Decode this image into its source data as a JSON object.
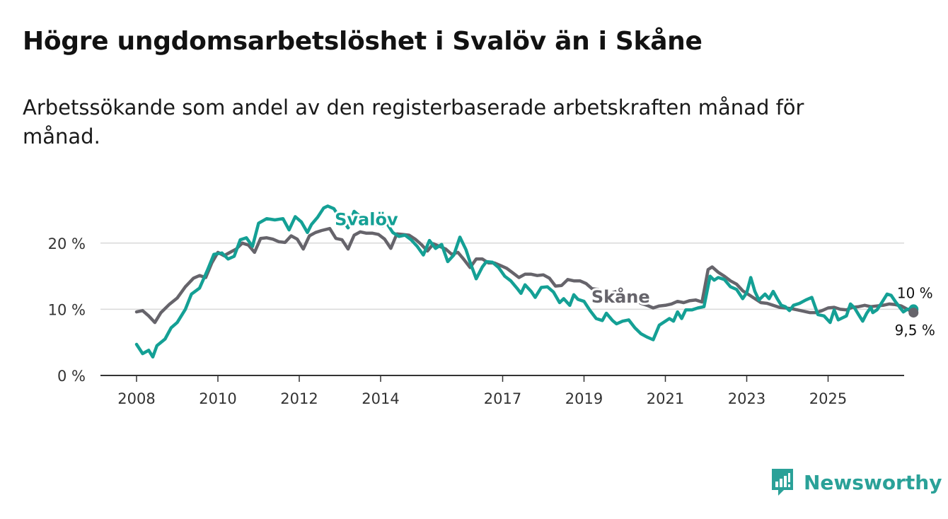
{
  "header": {
    "title": "Högre ungdomsarbetslöshet i Svalöv än i Skåne",
    "subtitle": "Arbetssökande som andel av den registerbaserade arbetskraften månad för månad."
  },
  "brand": {
    "name": "Newsworthy",
    "color": "#2aa198"
  },
  "chart_data": {
    "type": "line",
    "title": "Högre ungdomsarbetslöshet i Svalöv än i Skåne",
    "xlabel": "",
    "ylabel": "",
    "xlim": [
      2008.0,
      2026.0
    ],
    "ylim": [
      0,
      25
    ],
    "yticks": [
      0,
      10,
      20
    ],
    "ytick_labels": [
      "0 %",
      "10 %",
      "20 %"
    ],
    "xticks": [
      2008,
      2010,
      2012,
      2014,
      2017,
      2019,
      2021,
      2023,
      2025
    ],
    "xtick_labels": [
      "2008",
      "2010",
      "2012",
      "2014",
      "2017",
      "2019",
      "2021",
      "2023",
      "2025"
    ],
    "gridlines": true,
    "series": [
      {
        "name": "Svalöv",
        "color": "#14a095",
        "end_label": "10 %",
        "points": [
          [
            2008.0,
            4.7
          ],
          [
            2008.15,
            3.3
          ],
          [
            2008.3,
            3.8
          ],
          [
            2008.4,
            2.8
          ],
          [
            2008.5,
            4.5
          ],
          [
            2008.7,
            5.5
          ],
          [
            2008.85,
            7.2
          ],
          [
            2009.0,
            8.0
          ],
          [
            2009.2,
            10.0
          ],
          [
            2009.35,
            12.3
          ],
          [
            2009.55,
            13.2
          ],
          [
            2009.75,
            16.0
          ],
          [
            2009.9,
            18.3
          ],
          [
            2010.1,
            18.5
          ],
          [
            2010.25,
            17.6
          ],
          [
            2010.4,
            18.0
          ],
          [
            2010.55,
            20.5
          ],
          [
            2010.7,
            20.8
          ],
          [
            2010.85,
            19.5
          ],
          [
            2011.0,
            23.0
          ],
          [
            2011.2,
            23.7
          ],
          [
            2011.4,
            23.5
          ],
          [
            2011.6,
            23.7
          ],
          [
            2011.75,
            22.0
          ],
          [
            2011.9,
            24.0
          ],
          [
            2012.05,
            23.2
          ],
          [
            2012.2,
            21.6
          ],
          [
            2012.3,
            22.8
          ],
          [
            2012.45,
            23.9
          ],
          [
            2012.6,
            25.3
          ],
          [
            2012.7,
            25.6
          ],
          [
            2012.85,
            25.2
          ],
          [
            2013.0,
            23.8
          ],
          [
            2013.1,
            23.2
          ],
          [
            2013.2,
            22.3
          ],
          [
            2013.35,
            24.8
          ],
          [
            2013.5,
            24.0
          ],
          [
            2013.65,
            23.1
          ],
          [
            2013.8,
            23.5
          ],
          [
            2013.9,
            22.8
          ],
          [
            2014.05,
            22.6
          ],
          [
            2014.15,
            23.0
          ],
          [
            2014.3,
            21.6
          ],
          [
            2014.45,
            21.0
          ],
          [
            2014.6,
            21.2
          ],
          [
            2014.75,
            20.5
          ],
          [
            2014.9,
            19.5
          ],
          [
            2015.05,
            18.2
          ],
          [
            2015.2,
            20.4
          ],
          [
            2015.35,
            19.2
          ],
          [
            2015.5,
            19.8
          ],
          [
            2015.65,
            17.2
          ],
          [
            2015.8,
            18.2
          ],
          [
            2015.95,
            20.9
          ],
          [
            2016.1,
            19.0
          ],
          [
            2016.2,
            17.1
          ],
          [
            2016.35,
            14.6
          ],
          [
            2016.5,
            16.4
          ],
          [
            2016.6,
            17.2
          ],
          [
            2016.75,
            17.1
          ],
          [
            2016.9,
            16.3
          ],
          [
            2017.05,
            15.0
          ],
          [
            2017.2,
            14.3
          ],
          [
            2017.35,
            13.2
          ],
          [
            2017.45,
            12.4
          ],
          [
            2017.55,
            13.7
          ],
          [
            2017.7,
            12.7
          ],
          [
            2017.8,
            11.8
          ],
          [
            2017.95,
            13.3
          ],
          [
            2018.1,
            13.4
          ],
          [
            2018.25,
            12.6
          ],
          [
            2018.4,
            11.0
          ],
          [
            2018.5,
            11.6
          ],
          [
            2018.65,
            10.6
          ],
          [
            2018.75,
            12.2
          ],
          [
            2018.85,
            11.5
          ],
          [
            2019.0,
            11.2
          ],
          [
            2019.15,
            9.8
          ],
          [
            2019.3,
            8.6
          ],
          [
            2019.45,
            8.3
          ],
          [
            2019.55,
            9.4
          ],
          [
            2019.7,
            8.3
          ],
          [
            2019.8,
            7.8
          ],
          [
            2019.95,
            8.2
          ],
          [
            2020.1,
            8.4
          ],
          [
            2020.25,
            7.2
          ],
          [
            2020.4,
            6.3
          ],
          [
            2020.55,
            5.8
          ],
          [
            2020.7,
            5.4
          ],
          [
            2020.85,
            7.6
          ],
          [
            2021.0,
            8.2
          ],
          [
            2021.1,
            8.6
          ],
          [
            2021.2,
            8.2
          ],
          [
            2021.3,
            9.6
          ],
          [
            2021.4,
            8.6
          ],
          [
            2021.5,
            9.9
          ],
          [
            2021.65,
            9.9
          ],
          [
            2021.8,
            10.2
          ],
          [
            2021.95,
            10.4
          ],
          [
            2022.1,
            15.0
          ],
          [
            2022.2,
            14.4
          ],
          [
            2022.3,
            14.8
          ],
          [
            2022.45,
            14.5
          ],
          [
            2022.6,
            13.4
          ],
          [
            2022.75,
            13.0
          ],
          [
            2022.9,
            11.6
          ],
          [
            2023.0,
            12.5
          ],
          [
            2023.1,
            14.8
          ],
          [
            2023.2,
            12.7
          ],
          [
            2023.3,
            11.4
          ],
          [
            2023.45,
            12.3
          ],
          [
            2023.55,
            11.6
          ],
          [
            2023.65,
            12.7
          ],
          [
            2023.75,
            11.6
          ],
          [
            2023.85,
            10.6
          ],
          [
            2023.95,
            10.4
          ],
          [
            2024.05,
            9.8
          ],
          [
            2024.15,
            10.6
          ],
          [
            2024.3,
            10.9
          ],
          [
            2024.45,
            11.4
          ],
          [
            2024.6,
            11.8
          ],
          [
            2024.75,
            9.2
          ],
          [
            2024.9,
            9.0
          ],
          [
            2025.05,
            8.0
          ],
          [
            2025.15,
            9.9
          ],
          [
            2025.25,
            8.4
          ],
          [
            2025.35,
            8.7
          ],
          [
            2025.45,
            9.0
          ],
          [
            2025.55,
            10.8
          ],
          [
            2025.65,
            10.2
          ],
          [
            2025.75,
            9.2
          ],
          [
            2025.85,
            8.2
          ],
          [
            2025.95,
            9.4
          ],
          [
            2026.05,
            10.3
          ],
          [
            2026.1,
            9.5
          ],
          [
            2026.2,
            9.9
          ],
          [
            2026.3,
            10.8
          ],
          [
            2026.45,
            12.3
          ],
          [
            2026.55,
            12.1
          ],
          [
            2026.65,
            11.2
          ],
          [
            2026.75,
            10.4
          ],
          [
            2026.85,
            9.6
          ],
          [
            2026.95,
            10.0
          ],
          [
            2027.1,
            10.0
          ]
        ]
      },
      {
        "name": "Skåne",
        "color": "#66646b",
        "end_label": "9,5 %",
        "points": [
          [
            2008.0,
            9.6
          ],
          [
            2008.15,
            9.8
          ],
          [
            2008.3,
            9.0
          ],
          [
            2008.45,
            8.0
          ],
          [
            2008.6,
            9.5
          ],
          [
            2008.8,
            10.7
          ],
          [
            2009.0,
            11.7
          ],
          [
            2009.2,
            13.4
          ],
          [
            2009.4,
            14.7
          ],
          [
            2009.55,
            15.1
          ],
          [
            2009.7,
            14.8
          ],
          [
            2009.85,
            17.0
          ],
          [
            2010.0,
            18.6
          ],
          [
            2010.15,
            18.1
          ],
          [
            2010.3,
            18.6
          ],
          [
            2010.45,
            19.1
          ],
          [
            2010.6,
            20.0
          ],
          [
            2010.75,
            19.7
          ],
          [
            2010.9,
            18.6
          ],
          [
            2011.05,
            20.7
          ],
          [
            2011.2,
            20.8
          ],
          [
            2011.35,
            20.6
          ],
          [
            2011.5,
            20.2
          ],
          [
            2011.65,
            20.1
          ],
          [
            2011.8,
            21.1
          ],
          [
            2011.95,
            20.6
          ],
          [
            2012.1,
            19.1
          ],
          [
            2012.25,
            21.1
          ],
          [
            2012.4,
            21.6
          ],
          [
            2012.55,
            21.9
          ],
          [
            2012.75,
            22.2
          ],
          [
            2012.9,
            20.7
          ],
          [
            2013.05,
            20.5
          ],
          [
            2013.2,
            19.1
          ],
          [
            2013.35,
            21.2
          ],
          [
            2013.5,
            21.7
          ],
          [
            2013.65,
            21.5
          ],
          [
            2013.8,
            21.5
          ],
          [
            2013.95,
            21.3
          ],
          [
            2014.1,
            20.6
          ],
          [
            2014.25,
            19.2
          ],
          [
            2014.4,
            21.4
          ],
          [
            2014.55,
            21.3
          ],
          [
            2014.7,
            21.2
          ],
          [
            2014.85,
            20.6
          ],
          [
            2015.0,
            19.8
          ],
          [
            2015.15,
            18.8
          ],
          [
            2015.3,
            19.9
          ],
          [
            2015.45,
            19.5
          ],
          [
            2015.6,
            19.1
          ],
          [
            2015.75,
            18.3
          ],
          [
            2015.9,
            18.6
          ],
          [
            2016.05,
            17.5
          ],
          [
            2016.2,
            16.3
          ],
          [
            2016.35,
            17.6
          ],
          [
            2016.5,
            17.6
          ],
          [
            2016.65,
            17.0
          ],
          [
            2016.8,
            17.0
          ],
          [
            2016.95,
            16.6
          ],
          [
            2017.1,
            16.2
          ],
          [
            2017.25,
            15.5
          ],
          [
            2017.4,
            14.8
          ],
          [
            2017.55,
            15.3
          ],
          [
            2017.7,
            15.3
          ],
          [
            2017.85,
            15.1
          ],
          [
            2018.0,
            15.2
          ],
          [
            2018.15,
            14.7
          ],
          [
            2018.3,
            13.5
          ],
          [
            2018.45,
            13.6
          ],
          [
            2018.6,
            14.5
          ],
          [
            2018.75,
            14.3
          ],
          [
            2018.9,
            14.3
          ],
          [
            2019.05,
            13.9
          ],
          [
            2019.2,
            13.1
          ],
          [
            2019.35,
            13.0
          ],
          [
            2019.5,
            11.7
          ],
          [
            2019.65,
            12.4
          ],
          [
            2019.8,
            12.7
          ],
          [
            2019.95,
            12.2
          ],
          [
            2020.1,
            11.7
          ],
          [
            2020.25,
            11.5
          ],
          [
            2020.4,
            10.9
          ],
          [
            2020.55,
            10.6
          ],
          [
            2020.7,
            10.2
          ],
          [
            2020.85,
            10.5
          ],
          [
            2021.0,
            10.6
          ],
          [
            2021.15,
            10.8
          ],
          [
            2021.3,
            11.2
          ],
          [
            2021.45,
            11.0
          ],
          [
            2021.6,
            11.3
          ],
          [
            2021.75,
            11.4
          ],
          [
            2021.9,
            11.1
          ],
          [
            2022.05,
            16.0
          ],
          [
            2022.15,
            16.4
          ],
          [
            2022.3,
            15.6
          ],
          [
            2022.45,
            15.0
          ],
          [
            2022.6,
            14.3
          ],
          [
            2022.75,
            13.8
          ],
          [
            2022.9,
            12.8
          ],
          [
            2023.05,
            12.2
          ],
          [
            2023.2,
            11.6
          ],
          [
            2023.35,
            11.0
          ],
          [
            2023.5,
            10.9
          ],
          [
            2023.65,
            10.6
          ],
          [
            2023.8,
            10.3
          ],
          [
            2023.95,
            10.2
          ],
          [
            2024.1,
            10.1
          ],
          [
            2024.25,
            9.9
          ],
          [
            2024.4,
            9.7
          ],
          [
            2024.55,
            9.5
          ],
          [
            2024.7,
            9.5
          ],
          [
            2024.85,
            9.8
          ],
          [
            2025.0,
            10.2
          ],
          [
            2025.15,
            10.3
          ],
          [
            2025.3,
            10.0
          ],
          [
            2025.45,
            9.9
          ],
          [
            2025.6,
            10.3
          ],
          [
            2025.75,
            10.4
          ],
          [
            2025.9,
            10.6
          ],
          [
            2026.05,
            10.4
          ],
          [
            2026.2,
            10.5
          ],
          [
            2026.35,
            10.6
          ],
          [
            2026.5,
            10.8
          ],
          [
            2026.65,
            10.7
          ],
          [
            2026.8,
            10.5
          ],
          [
            2026.95,
            10.0
          ],
          [
            2027.1,
            9.5
          ]
        ]
      }
    ]
  }
}
